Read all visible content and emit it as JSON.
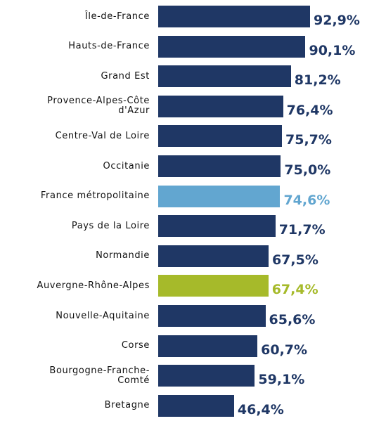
{
  "chart_data": {
    "type": "bar",
    "orientation": "horizontal",
    "categories": [
      "Île-de-France",
      "Hauts-de-France",
      "Grand Est",
      "Provence-Alpes-Côte d'Azur",
      "Centre-Val de Loire",
      "Occitanie",
      "France métropolitaine",
      "Pays de la Loire",
      "Normandie",
      "Auvergne-Rhône-Alpes",
      "Nouvelle-Aquitaine",
      "Corse",
      "Bourgogne-Franche-Comté",
      "Bretagne"
    ],
    "values": [
      92.9,
      90.1,
      81.2,
      76.4,
      75.7,
      75.0,
      74.6,
      71.7,
      67.5,
      67.4,
      65.6,
      60.7,
      59.1,
      46.4
    ],
    "value_labels": [
      "92,9%",
      "90,1%",
      "81,2%",
      "76,4%",
      "75,7%",
      "75,0%",
      "74,6%",
      "71,7%",
      "67,5%",
      "67,4%",
      "65,6%",
      "60,7%",
      "59,1%",
      "46,4%"
    ],
    "color": "#1f3765",
    "colors": [
      "#1f3765",
      "#1f3765",
      "#1f3765",
      "#1f3765",
      "#1f3765",
      "#1f3765",
      "#62a6d0",
      "#1f3765",
      "#1f3765",
      "#a6ba2a",
      "#1f3765",
      "#1f3765",
      "#1f3765",
      "#1f3765"
    ]
  }
}
